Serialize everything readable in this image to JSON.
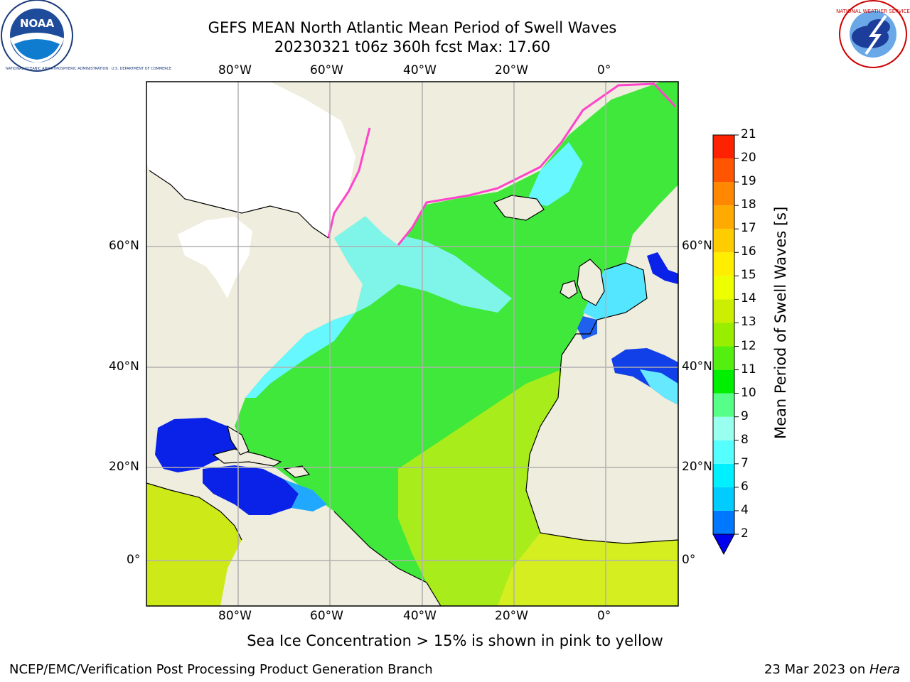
{
  "header": {
    "title_line1": "GEFS MEAN North Atlantic Mean Period of Swell Waves",
    "title_line2": "20230321 t06z 360h fcst   Max: 17.60"
  },
  "logos": {
    "noara_label": "NOAA",
    "noaa_ring": "NATIONAL OCEANIC AND ATMOSPHERIC ADMINISTRATION · U.S. DEPARTMENT OF COMMERCE",
    "nws_ring": "NATIONAL WEATHER SERVICE"
  },
  "map": {
    "lon_ticks": [
      "80°W",
      "60°W",
      "40°W",
      "20°W",
      "0°"
    ],
    "lat_ticks": [
      "60°N",
      "40°N",
      "20°N",
      "0°"
    ],
    "colors": {
      "land": "#efedde",
      "ice_white": "#ffffff",
      "ice_edge": "#ff44cc",
      "grid": "#b0b0b0"
    }
  },
  "colorbar": {
    "label": "Mean Period of Swell Waves [s]",
    "ticks": [
      "2",
      "4",
      "6",
      "7",
      "8",
      "9",
      "10",
      "11",
      "12",
      "13",
      "14",
      "15",
      "16",
      "17",
      "18",
      "19",
      "20",
      "21"
    ],
    "colors": [
      "#0000ee",
      "#0077ff",
      "#00ccff",
      "#00f0ff",
      "#55ffff",
      "#99ffee",
      "#55ff88",
      "#00ee00",
      "#55ee11",
      "#99ee00",
      "#ccee00",
      "#eeff00",
      "#ffee00",
      "#ffcc00",
      "#ffaa00",
      "#ff8800",
      "#ff5500",
      "#ff2200",
      "#ff0000"
    ]
  },
  "caption": "Sea Ice Concentration > 15% is shown in pink to yellow",
  "footer": {
    "left": "NCEP/EMC/Verification Post Processing Product Generation Branch",
    "date": "23 Mar 2023 on ",
    "machine": "Hera"
  }
}
